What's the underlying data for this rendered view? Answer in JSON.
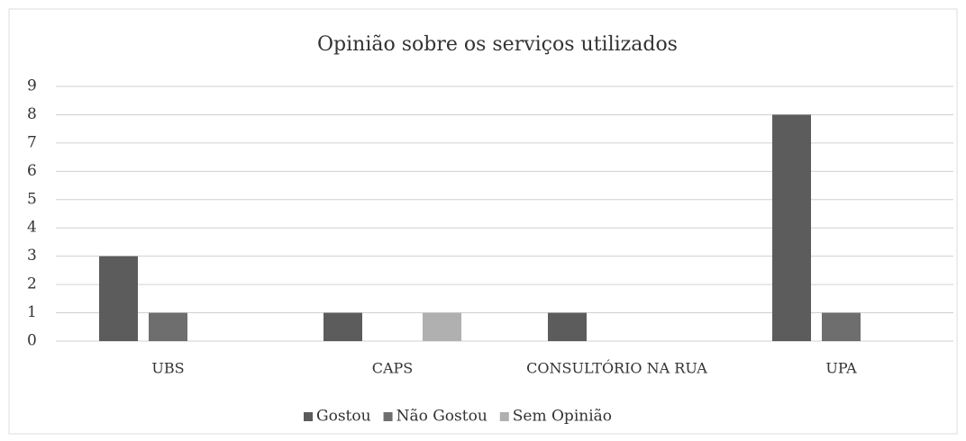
{
  "chart_data": {
    "type": "bar",
    "title": "Opinião sobre os serviços utilizados",
    "categories": [
      "UBS",
      "CAPS",
      "CONSULTÓRIO NA RUA",
      "UPA"
    ],
    "series": [
      {
        "name": "Gostou",
        "color": "#5c5c5c",
        "values": [
          3,
          1,
          1,
          8
        ]
      },
      {
        "name": "Não Gostou",
        "color": "#6e6e6e",
        "values": [
          1,
          0,
          0,
          1
        ]
      },
      {
        "name": "Sem Opinião",
        "color": "#b0b0b0",
        "values": [
          0,
          1,
          0,
          0
        ]
      }
    ],
    "ylim": [
      0,
      9
    ],
    "yticks": [
      0,
      1,
      2,
      3,
      4,
      5,
      6,
      7,
      8,
      9
    ],
    "grid": true,
    "legend": "bottom"
  }
}
